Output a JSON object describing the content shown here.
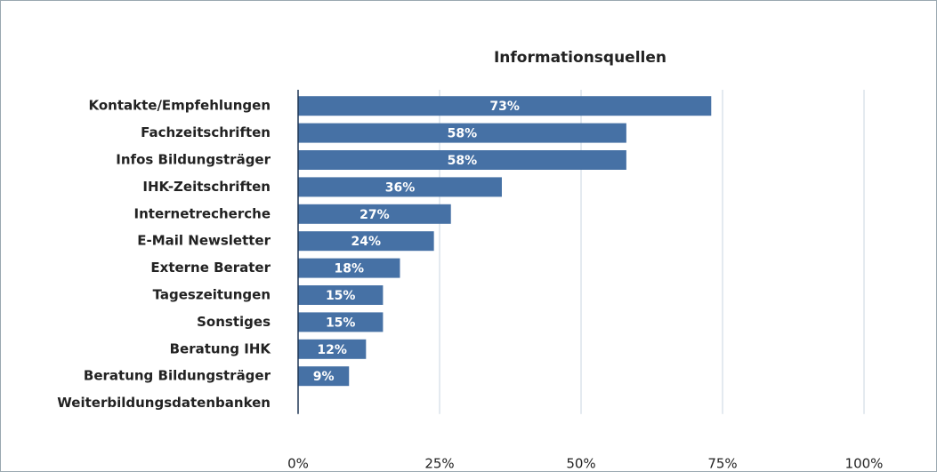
{
  "chart_data": {
    "type": "bar",
    "orientation": "horizontal",
    "title": "Informationsquellen",
    "categories": [
      "Kontakte/Empfehlungen",
      "Fachzeitschriften",
      "Infos Bildungsträger",
      "IHK-Zeitschriften",
      "Internetrecherche",
      "E-Mail Newsletter",
      "Externe Berater",
      "Tageszeitungen",
      "Sonstiges",
      "Beratung IHK",
      "Beratung Bildungsträger",
      "Weiterbildungsdatenbanken"
    ],
    "values": [
      73,
      58,
      58,
      36,
      27,
      24,
      18,
      15,
      15,
      12,
      9,
      0
    ],
    "value_labels": [
      "73%",
      "58%",
      "58%",
      "36%",
      "27%",
      "24%",
      "18%",
      "15%",
      "15%",
      "12%",
      "9%",
      null
    ],
    "color": "#4671a5",
    "xlim": [
      0,
      100
    ],
    "xticks": [
      {
        "value": 0,
        "label": "0%"
      },
      {
        "value": 25,
        "label": "25%"
      },
      {
        "value": 50,
        "label": "50%"
      },
      {
        "value": 75,
        "label": "75%"
      },
      {
        "value": 100,
        "label": "100%"
      }
    ],
    "grid": true
  }
}
